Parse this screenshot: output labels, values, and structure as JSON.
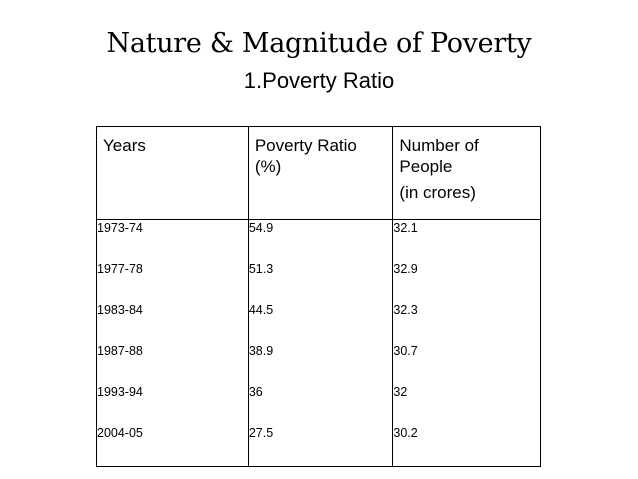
{
  "title": "Nature & Magnitude of Poverty",
  "subtitle": "1.Poverty Ratio",
  "table": {
    "headers": {
      "years": "Years",
      "ratio_line1": "Poverty Ratio",
      "ratio_line2": "(%)",
      "people_line1": "Number of",
      "people_line2": "People",
      "people_line3": "(in crores)"
    },
    "years": [
      "1973-74",
      "1977-78",
      "1983-84",
      "1987-88",
      "1993-94",
      "2004-05"
    ],
    "poverty_ratio": [
      "54.9",
      "51.3",
      "44.5",
      "38.9",
      "36",
      "27.5"
    ],
    "number_of_people": [
      "32.1",
      "32.9",
      "32.3",
      "30.7",
      "32",
      "30.2"
    ]
  }
}
